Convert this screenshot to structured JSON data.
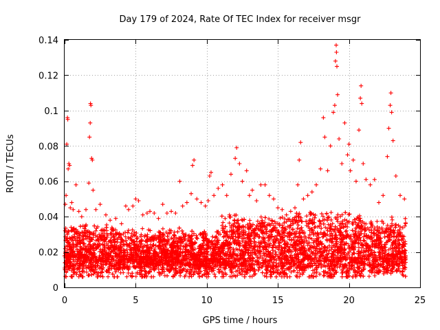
{
  "chart_data": {
    "type": "scatter",
    "title": "Day 179 of 2024, Rate Of TEC Index for receiver msgr",
    "xlabel": "GPS time / hours",
    "ylabel": "ROTI / TECUs",
    "xlim": [
      0,
      25
    ],
    "ylim": [
      0,
      0.14
    ],
    "xticks": [
      0,
      5,
      10,
      15,
      20,
      25
    ],
    "xtick_labels": [
      "0",
      "5",
      "10",
      "15",
      "20",
      "25"
    ],
    "yticks": [
      0,
      0.02,
      0.04,
      0.06,
      0.08,
      0.1,
      0.12,
      0.14
    ],
    "ytick_labels": [
      "0",
      "0.02",
      "0.04",
      "0.06",
      "0.08",
      "0.1",
      "0.12",
      "0.14"
    ],
    "grid": true,
    "marker": "+",
    "color": "#ff0000",
    "series": [
      {
        "name": "ROTI",
        "points": [
          [
            0.05,
            0.047
          ],
          [
            0.1,
            0.052
          ],
          [
            0.15,
            0.081
          ],
          [
            0.2,
            0.096
          ],
          [
            0.22,
            0.095
          ],
          [
            0.25,
            0.067
          ],
          [
            0.3,
            0.07
          ],
          [
            0.35,
            0.069
          ],
          [
            0.4,
            0.045
          ],
          [
            0.5,
            0.048
          ],
          [
            0.6,
            0.044
          ],
          [
            0.8,
            0.058
          ],
          [
            1.0,
            0.043
          ],
          [
            1.2,
            0.04
          ],
          [
            1.5,
            0.044
          ],
          [
            1.7,
            0.059
          ],
          [
            1.75,
            0.085
          ],
          [
            1.8,
            0.093
          ],
          [
            1.82,
            0.104
          ],
          [
            1.85,
            0.103
          ],
          [
            1.9,
            0.073
          ],
          [
            1.95,
            0.072
          ],
          [
            2.0,
            0.055
          ],
          [
            2.2,
            0.044
          ],
          [
            2.5,
            0.047
          ],
          [
            2.9,
            0.041
          ],
          [
            3.2,
            0.038
          ],
          [
            3.6,
            0.039
          ],
          [
            4.0,
            0.036
          ],
          [
            4.3,
            0.046
          ],
          [
            4.5,
            0.044
          ],
          [
            4.8,
            0.046
          ],
          [
            5.0,
            0.05
          ],
          [
            5.2,
            0.049
          ],
          [
            5.5,
            0.041
          ],
          [
            5.8,
            0.042
          ],
          [
            6.0,
            0.043
          ],
          [
            6.3,
            0.042
          ],
          [
            6.6,
            0.039
          ],
          [
            6.9,
            0.047
          ],
          [
            7.2,
            0.042
          ],
          [
            7.5,
            0.043
          ],
          [
            7.8,
            0.042
          ],
          [
            8.1,
            0.06
          ],
          [
            8.3,
            0.046
          ],
          [
            8.6,
            0.048
          ],
          [
            8.9,
            0.053
          ],
          [
            9.0,
            0.069
          ],
          [
            9.1,
            0.072
          ],
          [
            9.3,
            0.05
          ],
          [
            9.6,
            0.048
          ],
          [
            9.9,
            0.046
          ],
          [
            10.1,
            0.049
          ],
          [
            10.2,
            0.063
          ],
          [
            10.3,
            0.065
          ],
          [
            10.5,
            0.052
          ],
          [
            10.8,
            0.056
          ],
          [
            11.1,
            0.058
          ],
          [
            11.4,
            0.052
          ],
          [
            11.7,
            0.064
          ],
          [
            12.0,
            0.073
          ],
          [
            12.1,
            0.079
          ],
          [
            12.3,
            0.07
          ],
          [
            12.5,
            0.06
          ],
          [
            12.8,
            0.066
          ],
          [
            13.0,
            0.052
          ],
          [
            13.2,
            0.055
          ],
          [
            13.5,
            0.049
          ],
          [
            13.8,
            0.058
          ],
          [
            14.1,
            0.058
          ],
          [
            14.4,
            0.052
          ],
          [
            14.7,
            0.05
          ],
          [
            15.0,
            0.045
          ],
          [
            15.3,
            0.044
          ],
          [
            15.6,
            0.041
          ],
          [
            15.9,
            0.043
          ],
          [
            16.2,
            0.045
          ],
          [
            16.4,
            0.058
          ],
          [
            16.5,
            0.072
          ],
          [
            16.6,
            0.082
          ],
          [
            16.8,
            0.05
          ],
          [
            17.1,
            0.052
          ],
          [
            17.4,
            0.054
          ],
          [
            17.7,
            0.058
          ],
          [
            18.0,
            0.067
          ],
          [
            18.2,
            0.096
          ],
          [
            18.3,
            0.085
          ],
          [
            18.5,
            0.066
          ],
          [
            18.7,
            0.08
          ],
          [
            18.9,
            0.099
          ],
          [
            19.0,
            0.103
          ],
          [
            19.05,
            0.128
          ],
          [
            19.1,
            0.137
          ],
          [
            19.12,
            0.133
          ],
          [
            19.15,
            0.125
          ],
          [
            19.2,
            0.109
          ],
          [
            19.3,
            0.084
          ],
          [
            19.5,
            0.07
          ],
          [
            19.7,
            0.093
          ],
          [
            19.9,
            0.075
          ],
          [
            20.0,
            0.081
          ],
          [
            20.1,
            0.066
          ],
          [
            20.3,
            0.072
          ],
          [
            20.5,
            0.06
          ],
          [
            20.7,
            0.089
          ],
          [
            20.8,
            0.107
          ],
          [
            20.85,
            0.114
          ],
          [
            20.9,
            0.104
          ],
          [
            21.0,
            0.07
          ],
          [
            21.2,
            0.061
          ],
          [
            21.5,
            0.058
          ],
          [
            21.8,
            0.061
          ],
          [
            22.1,
            0.048
          ],
          [
            22.4,
            0.052
          ],
          [
            22.7,
            0.074
          ],
          [
            22.8,
            0.09
          ],
          [
            22.9,
            0.103
          ],
          [
            22.95,
            0.11
          ],
          [
            23.0,
            0.099
          ],
          [
            23.1,
            0.083
          ],
          [
            23.3,
            0.063
          ],
          [
            23.6,
            0.052
          ],
          [
            23.9,
            0.05
          ]
        ],
        "dense_band": {
          "description": "dense cloud of samples across the full day",
          "x_range": [
            0,
            24
          ],
          "y_range": [
            0.006,
            0.045
          ],
          "approx_count": 6000
        }
      }
    ]
  }
}
